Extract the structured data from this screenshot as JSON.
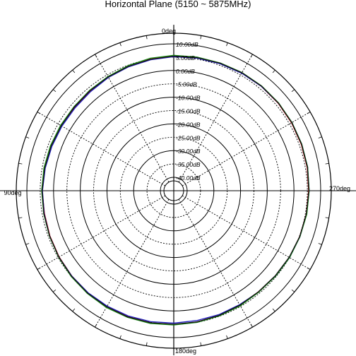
{
  "chart_data": {
    "type": "polar",
    "title": "Horizontal Plane (5150 ~ 5875MHz)",
    "angle_labels": {
      "top": "0deg",
      "left": "90deg",
      "right": "270deg",
      "bottom": "180deg"
    },
    "radial_axis": {
      "max_db": 10,
      "min_db": -40,
      "step_db": 5,
      "ring_labels": [
        "10.00dB",
        "5.00dB",
        "0.00dB",
        "-5.00dB",
        "-10.00dB",
        "-15.00dB",
        "-20.00dB",
        "-25.00dB",
        "-30.00dB",
        "-35.00dB",
        "-40.00dB"
      ]
    },
    "grid": true,
    "series": [
      {
        "color": "#d00000",
        "values": [
          5.6,
          5.2,
          4.6,
          4.2,
          3.8,
          3.6,
          3.9,
          4.1,
          4.3,
          4.4,
          4.3,
          4.5,
          4.7,
          4.9,
          5.1,
          5.2,
          5.3,
          5.3,
          5.2,
          5.0,
          4.8,
          4.6,
          4.5,
          4.8,
          5.1,
          5.3,
          5.5,
          5.6,
          5.8,
          5.9,
          6.0,
          6.1,
          6.1,
          6.0,
          5.8,
          5.7
        ]
      },
      {
        "color": "#2020c0",
        "values": [
          5.3,
          4.9,
          4.5,
          4.1,
          3.6,
          3.4,
          3.5,
          3.7,
          4.0,
          4.3,
          4.4,
          4.6,
          4.8,
          4.9,
          5.0,
          5.0,
          5.0,
          4.9,
          4.7,
          4.5,
          4.5,
          4.4,
          4.6,
          4.9,
          5.2,
          5.4,
          5.6,
          5.8,
          6.0,
          6.1,
          6.2,
          6.2,
          6.1,
          5.9,
          5.7,
          5.5
        ]
      },
      {
        "color": "#1a8a1a",
        "values": [
          5.8,
          5.5,
          5.0,
          4.5,
          4.2,
          4.0,
          4.1,
          4.3,
          4.5,
          4.6,
          4.6,
          4.7,
          4.9,
          5.2,
          5.4,
          5.6,
          5.6,
          5.6,
          5.4,
          5.2,
          5.0,
          4.9,
          4.7,
          4.9,
          5.2,
          5.4,
          5.7,
          5.8,
          6.0,
          6.1,
          6.2,
          6.3,
          6.3,
          6.2,
          6.0,
          5.9
        ]
      },
      {
        "color": "#111111",
        "values": [
          5.5,
          5.1,
          4.7,
          4.3,
          4.0,
          3.8,
          3.8,
          4.0,
          4.2,
          4.4,
          4.5,
          4.6,
          4.8,
          5.0,
          5.2,
          5.3,
          5.4,
          5.3,
          5.1,
          5.0,
          4.8,
          4.6,
          4.5,
          4.7,
          5.0,
          5.3,
          5.5,
          5.7,
          5.9,
          6.0,
          6.1,
          6.2,
          6.2,
          6.1,
          5.9,
          5.7
        ]
      }
    ]
  }
}
